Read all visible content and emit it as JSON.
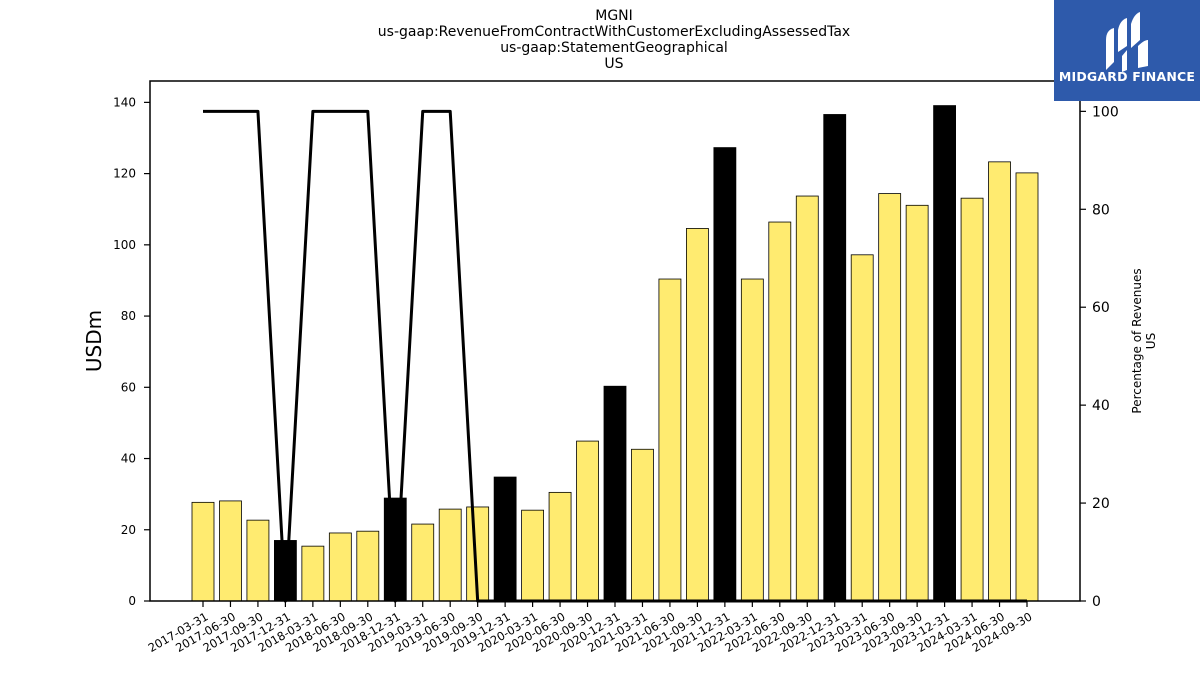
{
  "branding": {
    "logo_text": "MIDGARD FINANCE",
    "logo_background": "#2e5aab",
    "logo_icon": "midgard-m-logo-icon"
  },
  "chart_data": {
    "type": "bar",
    "title": "MGNI",
    "title_lines": [
      "MGNI",
      "us-gaap:RevenueFromContractWithCustomerExcludingAssessedTax",
      "us-gaap:StatementGeographical",
      "US"
    ],
    "ylabel": "USDm",
    "ylabel_right": [
      "Percentage of Revenues",
      "US"
    ],
    "ylim": [
      0,
      146
    ],
    "ylim_right": [
      0,
      106.2
    ],
    "yticks": [
      0,
      20,
      40,
      60,
      80,
      100,
      120,
      140
    ],
    "yticks_right": [
      0,
      20,
      40,
      60,
      80,
      100
    ],
    "grid": false,
    "categories": [
      "2017-03-31",
      "2017-06-30",
      "2017-09-30",
      "2017-12-31",
      "2018-03-31",
      "2018-06-30",
      "2018-09-30",
      "2018-12-31",
      "2019-03-31",
      "2019-06-30",
      "2019-09-30",
      "2019-12-31",
      "2020-03-31",
      "2020-06-30",
      "2020-09-30",
      "2020-12-31",
      "2021-03-31",
      "2021-06-30",
      "2021-09-30",
      "2021-12-31",
      "2022-03-31",
      "2022-06-30",
      "2022-09-30",
      "2022-12-31",
      "2023-03-31",
      "2023-06-30",
      "2023-09-30",
      "2023-12-31",
      "2024-03-31",
      "2024-06-30",
      "2024-09-30"
    ],
    "series": [
      {
        "type": "bar",
        "axis": "left",
        "values": [
          27.7,
          28.1,
          22.7,
          17.0,
          15.4,
          19.1,
          19.6,
          28.9,
          21.6,
          25.8,
          26.4,
          34.8,
          25.5,
          30.5,
          44.9,
          60.3,
          42.6,
          90.4,
          104.6,
          127.3,
          90.4,
          106.4,
          113.7,
          136.6,
          97.2,
          114.4,
          111.1,
          139.1,
          113.1,
          123.3,
          120.2
        ],
        "colors": {
          "default": "#ffeb70",
          "q4": "#000000",
          "edge": "#000000"
        }
      },
      {
        "type": "line",
        "axis": "right",
        "values": [
          100,
          100,
          100,
          0,
          100,
          100,
          100,
          0,
          100,
          100,
          0,
          0,
          0,
          0,
          0,
          0,
          0,
          0,
          0,
          0,
          0,
          0,
          0,
          0,
          0,
          0,
          0,
          0,
          0,
          0,
          0
        ],
        "color": "#000000"
      }
    ]
  }
}
